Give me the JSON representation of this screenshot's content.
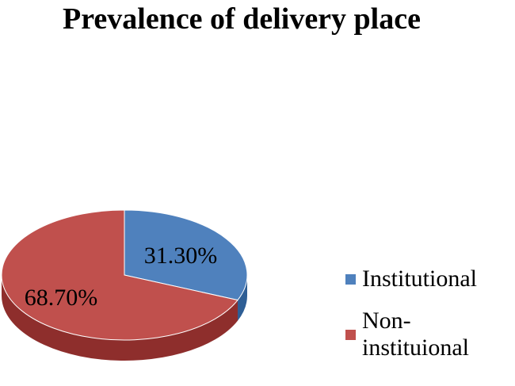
{
  "chart_data": {
    "type": "pie",
    "title": "Prevalence of delivery place",
    "slices": [
      {
        "name": "Institutional",
        "value": 31.3,
        "label": "31.30%",
        "color": "#4F81BD",
        "side_color": "#2E5E95"
      },
      {
        "name": "Non-instituional",
        "value": 68.7,
        "label": "68.70%",
        "color": "#C0504D",
        "side_color": "#8E2E2C"
      }
    ],
    "legend": {
      "position": "right"
    },
    "style": "3d"
  }
}
